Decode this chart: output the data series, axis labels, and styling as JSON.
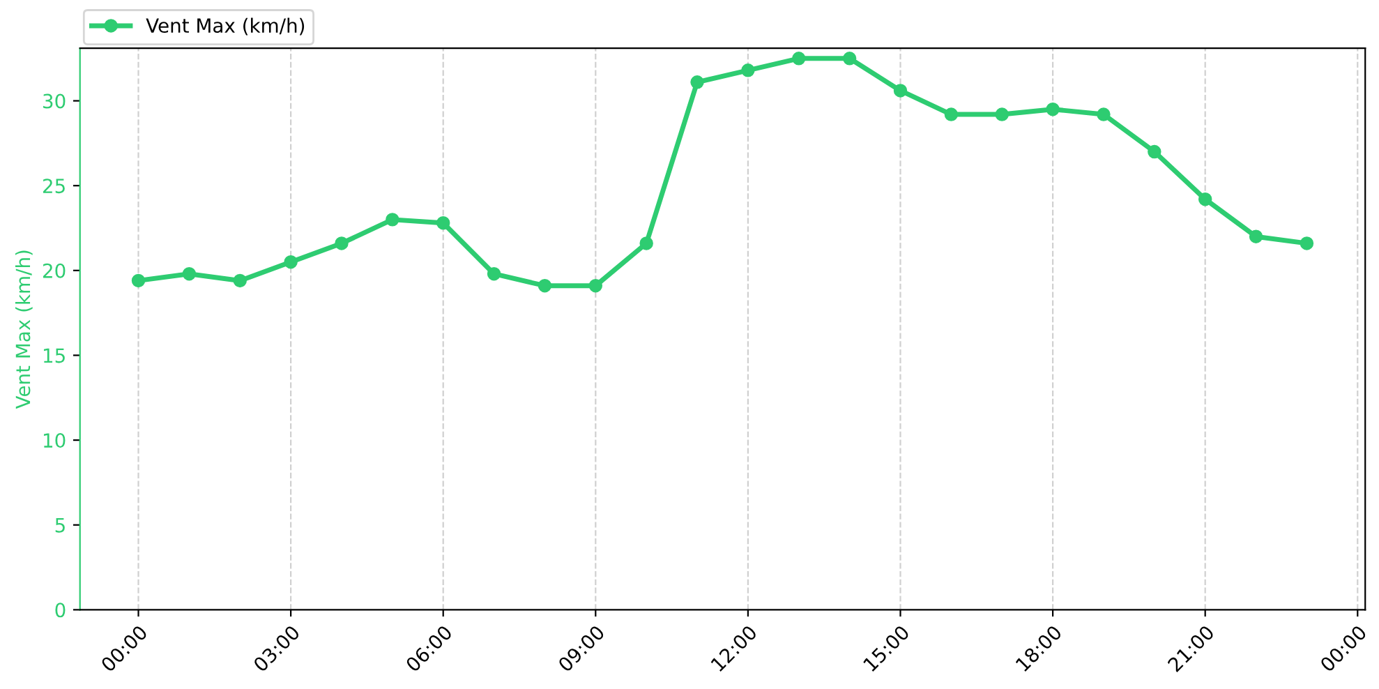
{
  "chart_data": {
    "type": "line",
    "ylabel": "Vent Max (km/h)",
    "x": [
      0,
      1,
      2,
      3,
      4,
      5,
      6,
      7,
      8,
      9,
      10,
      11,
      12,
      13,
      14,
      15,
      16,
      17,
      18,
      19,
      20,
      21,
      22,
      23
    ],
    "series": [
      {
        "name": "Vent Max (km/h)",
        "color": "#2ecc71",
        "values": [
          19.4,
          19.8,
          19.4,
          20.5,
          21.6,
          23.0,
          22.8,
          19.8,
          19.1,
          19.1,
          21.6,
          31.1,
          31.8,
          32.5,
          32.5,
          30.6,
          29.2,
          29.2,
          29.5,
          29.2,
          27.0,
          24.2,
          22.0,
          21.6
        ]
      }
    ],
    "xlim": [
      -1.15,
      24.15
    ],
    "ylim": [
      0,
      33.1
    ],
    "xticks": [
      {
        "value": 0,
        "label": "00:00"
      },
      {
        "value": 3,
        "label": "03:00"
      },
      {
        "value": 6,
        "label": "06:00"
      },
      {
        "value": 9,
        "label": "09:00"
      },
      {
        "value": 12,
        "label": "12:00"
      },
      {
        "value": 15,
        "label": "15:00"
      },
      {
        "value": 18,
        "label": "18:00"
      },
      {
        "value": 21,
        "label": "21:00"
      },
      {
        "value": 24,
        "label": "00:00"
      }
    ],
    "yticks": [
      0,
      5,
      10,
      15,
      20,
      25,
      30
    ],
    "grid": "x",
    "legend": "top left",
    "marker": "circle",
    "line_style": "solid"
  }
}
